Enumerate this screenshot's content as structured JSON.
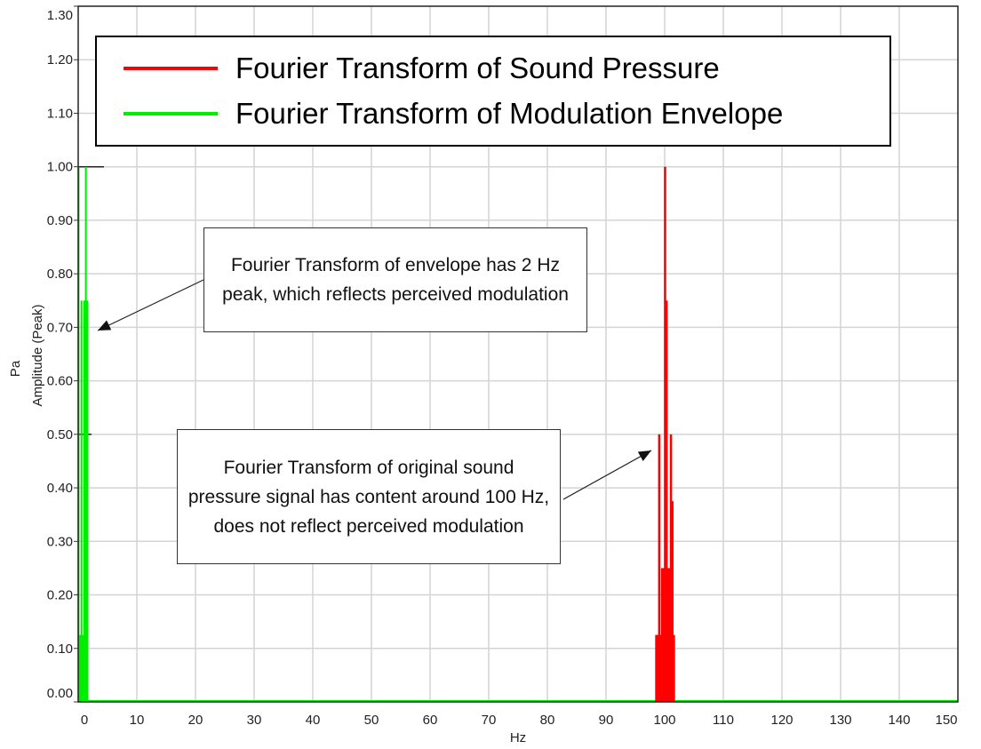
{
  "chart_data": {
    "type": "line",
    "title": "",
    "xlabel": "Hz",
    "ylabel_unit": "Pa",
    "ylabel": "Amplitude (Peak)",
    "xlim": [
      0,
      150
    ],
    "ylim": [
      0,
      1.3
    ],
    "xticks": [
      0,
      10,
      20,
      30,
      40,
      50,
      60,
      70,
      80,
      90,
      100,
      110,
      120,
      130,
      140,
      150
    ],
    "yticks": [
      "0.00",
      "0.10",
      "0.20",
      "0.30",
      "0.40",
      "0.50",
      "0.60",
      "0.70",
      "0.80",
      "0.90",
      "1.00",
      "1.10",
      "1.20",
      "1.30"
    ],
    "grid": true,
    "legend_placement": "top",
    "series": [
      {
        "name": "Fourier Transform of Sound Pressure",
        "color": "#ff0000",
        "x": [
          98.5,
          98.75,
          99,
          99.25,
          99.5,
          99.75,
          100,
          100.25,
          100.5,
          100.75,
          101,
          101.25,
          101.5
        ],
        "y": [
          0.125,
          0.125,
          0.5,
          0.125,
          0.25,
          0.25,
          1.0,
          0.75,
          0.25,
          0.25,
          0.5,
          0.375,
          0.125
        ]
      },
      {
        "name": "Fourier Transform of Modulation Envelope",
        "color": "#00ee00",
        "x": [
          0,
          0.5,
          1,
          1.25,
          1.5
        ],
        "y": [
          1.0,
          0.75,
          0.75,
          1.0,
          0.75
        ]
      }
    ],
    "annotations": [
      {
        "text": "Fourier Transform of envelope has 2 Hz peak, which reflects perceived modulation",
        "points_to": {
          "x": 2,
          "y": 0.7
        }
      },
      {
        "text": "Fourier Transform of original sound pressure signal has content around 100 Hz, does not reflect perceived modulation",
        "points_to": {
          "x": 98.5,
          "y": 0.47
        }
      }
    ]
  }
}
